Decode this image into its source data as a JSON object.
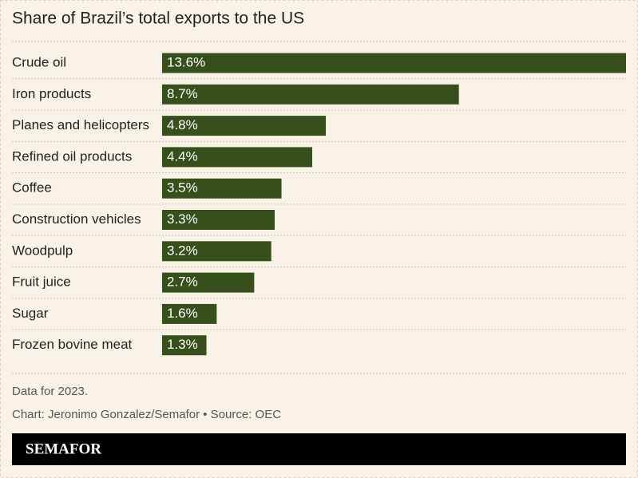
{
  "chart_data": {
    "type": "bar",
    "orientation": "horizontal",
    "title": "Share of Brazil’s total exports to the US",
    "categories": [
      "Crude oil",
      "Iron products",
      "Planes and helicopters",
      "Refined oil products",
      "Coffee",
      "Construction vehicles",
      "Woodpulp",
      "Fruit juice",
      "Sugar",
      "Frozen bovine meat"
    ],
    "values": [
      13.6,
      8.7,
      4.8,
      4.4,
      3.5,
      3.3,
      3.2,
      2.7,
      1.6,
      1.3
    ],
    "value_labels": [
      "13.6%",
      "8.7%",
      "4.8%",
      "4.4%",
      "3.5%",
      "3.3%",
      "3.2%",
      "2.7%",
      "1.6%",
      "1.3%"
    ],
    "color": "#364f1b",
    "note": "Data for 2023.",
    "credit": "Chart: Jeronimo Gonzalez/Semafor • Source: OEC"
  },
  "footer": {
    "brand": "SEMAFOR"
  }
}
